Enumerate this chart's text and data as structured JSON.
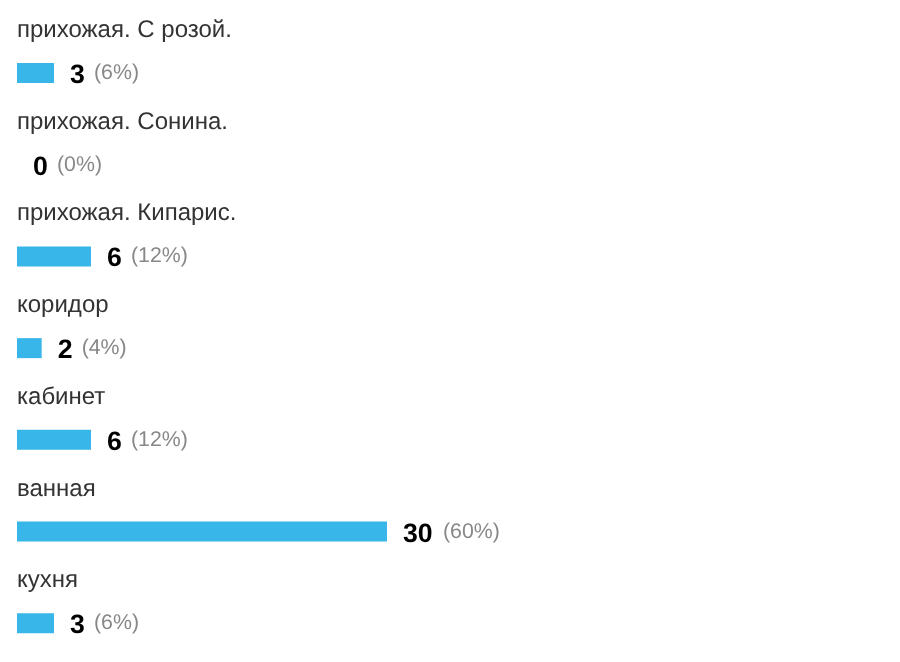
{
  "chart_data": {
    "type": "bar",
    "orientation": "horizontal",
    "categories": [
      "прихожая. С розой.",
      "прихожая. Сонина.",
      "прихожая. Кипарис.",
      "коридор",
      "кабинет",
      "ванная",
      "кухня"
    ],
    "values": [
      3,
      0,
      6,
      2,
      6,
      30,
      3
    ],
    "color": "#38b6ea",
    "value_labels": [
      "3",
      "0",
      "6",
      "2",
      "6",
      "30",
      "3"
    ],
    "annotations": [
      {
        "text": "(6%)",
        "x": 3,
        "y": "прихожая. С розой."
      },
      {
        "text": "(0%)",
        "x": 0,
        "y": "прихожая. Сонина."
      },
      {
        "text": "(12%)",
        "x": 6,
        "y": "прихожая. Кипарис."
      },
      {
        "text": "(4%)",
        "x": 2,
        "y": "коридор"
      },
      {
        "text": "(12%)",
        "x": 6,
        "y": "кабинет"
      },
      {
        "text": "(60%)",
        "x": 30,
        "y": "ванная"
      },
      {
        "text": "(6%)",
        "x": 3,
        "y": "кухня"
      }
    ]
  }
}
